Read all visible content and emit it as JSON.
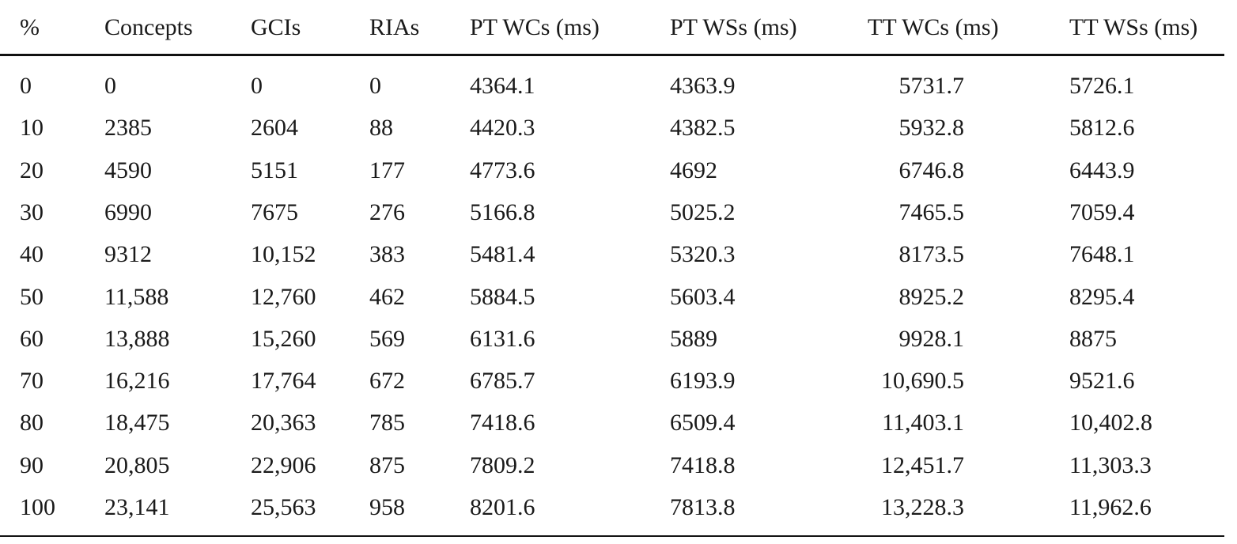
{
  "table": {
    "headers": [
      "%",
      "Concepts",
      "GCIs",
      "RIAs",
      "PT WCs (ms)",
      "PT WSs (ms)",
      "TT WCs (ms)",
      "TT WSs (ms)"
    ],
    "rows": [
      [
        "0",
        "0",
        "0",
        "0",
        "4364.1",
        "4363.9",
        "5731.7",
        "5726.1"
      ],
      [
        "10",
        "2385",
        "2604",
        "88",
        "4420.3",
        "4382.5",
        "5932.8",
        "5812.6"
      ],
      [
        "20",
        "4590",
        "5151",
        "177",
        "4773.6",
        "4692",
        "6746.8",
        "6443.9"
      ],
      [
        "30",
        "6990",
        "7675",
        "276",
        "5166.8",
        "5025.2",
        "7465.5",
        "7059.4"
      ],
      [
        "40",
        "9312",
        "10,152",
        "383",
        "5481.4",
        "5320.3",
        "8173.5",
        "7648.1"
      ],
      [
        "50",
        "11,588",
        "12,760",
        "462",
        "5884.5",
        "5603.4",
        "8925.2",
        "8295.4"
      ],
      [
        "60",
        "13,888",
        "15,260",
        "569",
        "6131.6",
        "5889",
        "9928.1",
        "8875"
      ],
      [
        "70",
        "16,216",
        "17,764",
        "672",
        "6785.7",
        "6193.9",
        "10,690.5",
        "9521.6"
      ],
      [
        "80",
        "18,475",
        "20,363",
        "785",
        "7418.6",
        "6509.4",
        "11,403.1",
        "10,402.8"
      ],
      [
        "90",
        "20,805",
        "22,906",
        "875",
        "7809.2",
        "7418.8",
        "12,451.7",
        "11,303.3"
      ],
      [
        "100",
        "23,141",
        "25,563",
        "958",
        "8201.6",
        "7813.8",
        "13,228.3",
        "11,962.6"
      ]
    ]
  }
}
